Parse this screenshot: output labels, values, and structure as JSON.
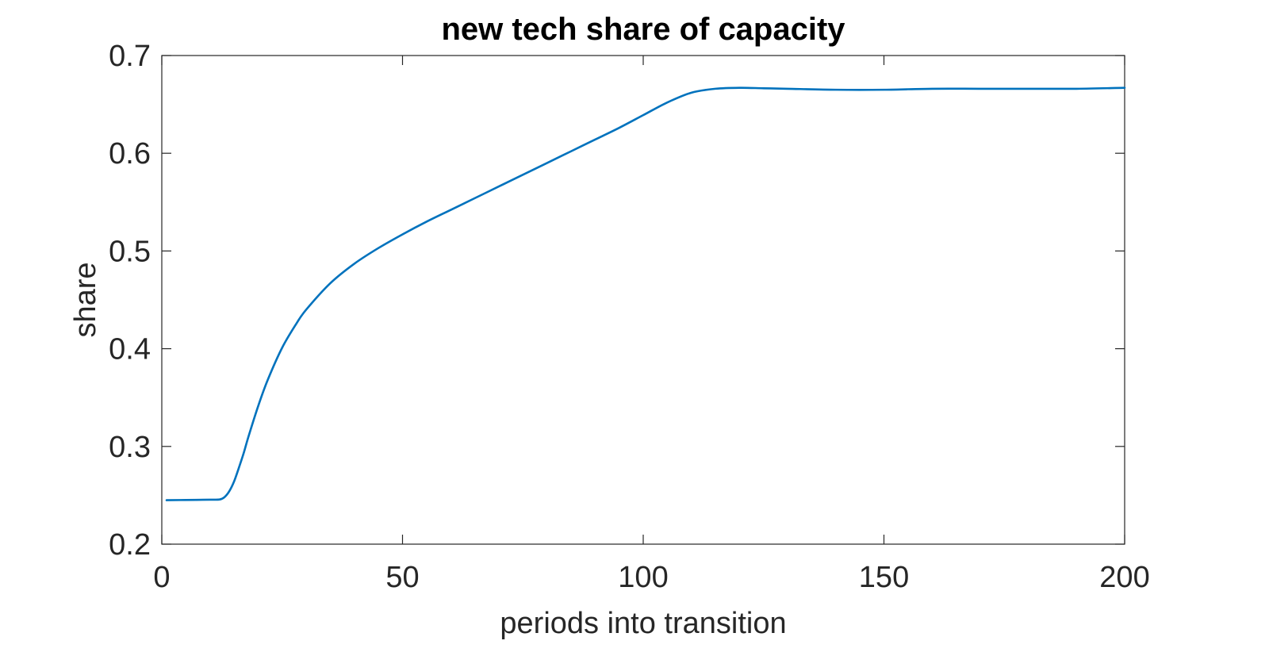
{
  "chart_data": {
    "type": "line",
    "title": "new tech share of capacity",
    "xlabel": "periods into transition",
    "ylabel": "share",
    "xlim": [
      0,
      200
    ],
    "ylim": [
      0.2,
      0.7
    ],
    "xticks": [
      0,
      50,
      100,
      150,
      200
    ],
    "yticks": [
      0.2,
      0.3,
      0.4,
      0.5,
      0.6,
      0.7
    ],
    "xtick_labels": [
      "0",
      "50",
      "100",
      "150",
      "200"
    ],
    "ytick_labels": [
      "0.2",
      "0.3",
      "0.4",
      "0.5",
      "0.6",
      "0.7"
    ],
    "grid": false,
    "colors": {
      "series": "#0072bd",
      "axes": "#262626"
    },
    "series": [
      {
        "x": [
          1,
          5,
          10,
          12,
          13,
          14,
          15,
          16,
          17,
          18,
          20,
          22,
          25,
          28,
          30,
          35,
          40,
          45,
          50,
          55,
          60,
          65,
          70,
          75,
          80,
          85,
          90,
          95,
          100,
          105,
          110,
          115,
          120,
          125,
          130,
          140,
          150,
          160,
          170,
          180,
          190,
          200
        ],
        "values": [
          0.245,
          0.2452,
          0.2455,
          0.2457,
          0.248,
          0.254,
          0.264,
          0.278,
          0.293,
          0.31,
          0.341,
          0.368,
          0.401,
          0.426,
          0.44,
          0.467,
          0.487,
          0.503,
          0.517,
          0.53,
          0.542,
          0.554,
          0.566,
          0.578,
          0.59,
          0.602,
          0.614,
          0.626,
          0.639,
          0.652,
          0.662,
          0.666,
          0.667,
          0.6665,
          0.666,
          0.665,
          0.665,
          0.666,
          0.666,
          0.666,
          0.666,
          0.667
        ]
      }
    ]
  }
}
